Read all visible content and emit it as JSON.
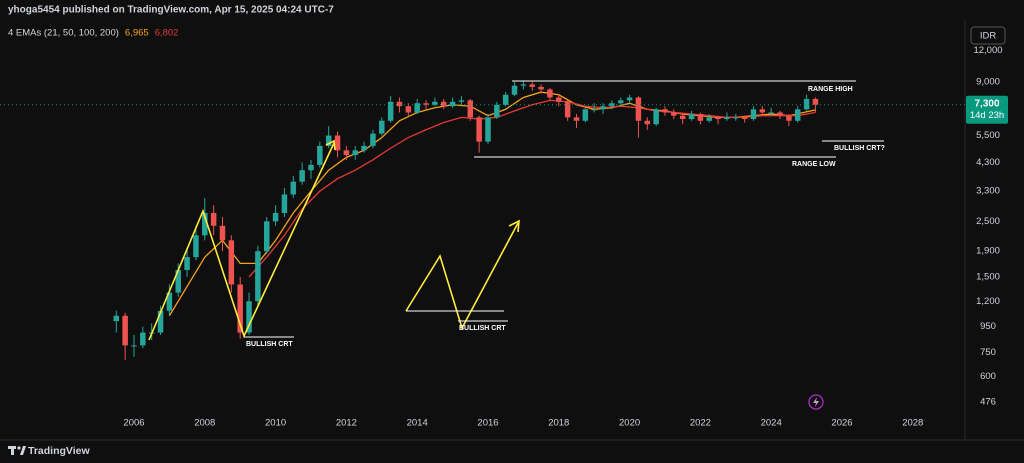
{
  "chart_data": {
    "type": "candlestick",
    "title": "yhoga5454 published on TradingView.com, Apr 15, 2025 04:24 UTC-7",
    "currency": "IDR",
    "brand": "TradingView",
    "indicator": "4 EMAs (21, 50, 100, 200)",
    "log_scale": true,
    "grid": false,
    "up_color": "#26a69a",
    "down_color": "#ef5350",
    "xlim": [
      2002.215,
      2029.475
    ],
    "xticks": [
      2006,
      2008,
      2010,
      2012,
      2014,
      2016,
      2018,
      2020,
      2022,
      2024,
      2026,
      2028
    ],
    "ylim": [
      422,
      15900
    ],
    "yticks": [
      476,
      600,
      750,
      950,
      {
        "value": 1200,
        "label": "1,200"
      },
      {
        "value": 1500,
        "label": "1,500"
      },
      {
        "value": 1900,
        "label": "1,900"
      },
      {
        "value": 2500,
        "label": "2,500"
      },
      {
        "value": 3300,
        "label": "3,300"
      },
      {
        "value": 4300,
        "label": "4,300"
      },
      {
        "value": 5500,
        "label": "5,500"
      },
      {
        "value": 9000,
        "label": "9,000"
      },
      {
        "value": 12000,
        "label": "12,000"
      }
    ],
    "last_price": {
      "value": 7300,
      "label": "7,300",
      "countdown": "14d 23h",
      "color": "#089981"
    },
    "x": [
      2005.5,
      2005.75,
      2006,
      2006.25,
      2006.5,
      2006.75,
      2007,
      2007.25,
      2007.5,
      2007.75,
      2008,
      2008.25,
      2008.5,
      2008.75,
      2009,
      2009.25,
      2009.5,
      2009.75,
      2010,
      2010.25,
      2010.5,
      2010.75,
      2011,
      2011.25,
      2011.5,
      2011.75,
      2012,
      2012.25,
      2012.5,
      2012.75,
      2013,
      2013.25,
      2013.5,
      2013.75,
      2014,
      2014.25,
      2014.5,
      2014.75,
      2015,
      2015.25,
      2015.5,
      2015.75,
      2016,
      2016.25,
      2016.5,
      2016.75,
      2017,
      2017.25,
      2017.5,
      2017.75,
      2018,
      2018.25,
      2018.5,
      2018.75,
      2019,
      2019.25,
      2019.5,
      2019.75,
      2020,
      2020.25,
      2020.5,
      2020.75,
      2021,
      2021.25,
      2021.5,
      2021.75,
      2022,
      2022.25,
      2022.5,
      2022.75,
      2023,
      2023.25,
      2023.5,
      2023.75,
      2024,
      2024.25,
      2024.5,
      2024.75,
      2025,
      2025.25
    ],
    "ohlc": [
      [
        1000,
        1100,
        900,
        1050
      ],
      [
        1050,
        1080,
        700,
        800
      ],
      [
        800,
        880,
        720,
        800
      ],
      [
        800,
        950,
        780,
        900
      ],
      [
        900,
        980,
        840,
        900
      ],
      [
        900,
        1150,
        880,
        1100
      ],
      [
        1100,
        1400,
        1050,
        1300
      ],
      [
        1300,
        1700,
        1250,
        1600
      ],
      [
        1600,
        1950,
        1500,
        1800
      ],
      [
        1800,
        2400,
        1750,
        2200
      ],
      [
        2200,
        3100,
        2100,
        2700
      ],
      [
        2700,
        2900,
        2200,
        2400
      ],
      [
        2400,
        2600,
        1900,
        2100
      ],
      [
        2100,
        2200,
        1300,
        1400
      ],
      [
        1400,
        1500,
        850,
        900
      ],
      [
        900,
        1300,
        880,
        1200
      ],
      [
        1200,
        2000,
        1150,
        1900
      ],
      [
        1900,
        2600,
        1850,
        2500
      ],
      [
        2500,
        2900,
        2400,
        2700
      ],
      [
        2700,
        3400,
        2600,
        3200
      ],
      [
        3200,
        3800,
        3100,
        3600
      ],
      [
        3600,
        4300,
        3500,
        4000
      ],
      [
        4000,
        4400,
        3700,
        4200
      ],
      [
        4200,
        5200,
        4100,
        5000
      ],
      [
        5000,
        6000,
        4900,
        5500
      ],
      [
        5500,
        5700,
        4500,
        4800
      ],
      [
        4800,
        5000,
        4400,
        4600
      ],
      [
        4600,
        5000,
        4400,
        4800
      ],
      [
        4800,
        5200,
        4700,
        5000
      ],
      [
        5000,
        5800,
        4900,
        5600
      ],
      [
        5600,
        6500,
        5500,
        6300
      ],
      [
        6300,
        7900,
        6200,
        7500
      ],
      [
        7500,
        7800,
        6800,
        7200
      ],
      [
        7200,
        7400,
        6500,
        6800
      ],
      [
        6800,
        7700,
        6700,
        7400
      ],
      [
        7400,
        7600,
        7000,
        7300
      ],
      [
        7300,
        7800,
        7200,
        7500
      ],
      [
        7500,
        7700,
        7000,
        7200
      ],
      [
        7200,
        7800,
        7100,
        7500
      ],
      [
        7500,
        7900,
        7300,
        7600
      ],
      [
        7600,
        7700,
        6300,
        6500
      ],
      [
        6500,
        6600,
        4700,
        5200
      ],
      [
        5200,
        6700,
        5100,
        6500
      ],
      [
        6500,
        7500,
        6400,
        7300
      ],
      [
        7300,
        8200,
        7200,
        8000
      ],
      [
        8000,
        9000,
        7900,
        8700
      ],
      [
        8700,
        9100,
        8400,
        8800
      ],
      [
        8800,
        9000,
        8300,
        8600
      ],
      [
        8600,
        8800,
        8100,
        8400
      ],
      [
        8400,
        8500,
        7600,
        7800
      ],
      [
        7800,
        8000,
        7200,
        7500
      ],
      [
        7500,
        7600,
        6300,
        6500
      ],
      [
        6500,
        6700,
        5900,
        6300
      ],
      [
        6300,
        7100,
        6200,
        7000
      ],
      [
        7000,
        7400,
        6800,
        7000
      ],
      [
        7000,
        7400,
        6700,
        7200
      ],
      [
        7200,
        7600,
        7000,
        7400
      ],
      [
        7400,
        7800,
        7200,
        7600
      ],
      [
        7600,
        8000,
        7400,
        7800
      ],
      [
        7800,
        7900,
        5400,
        6300
      ],
      [
        6300,
        6500,
        5800,
        6100
      ],
      [
        6100,
        7100,
        6000,
        7000
      ],
      [
        7000,
        7200,
        6600,
        6800
      ],
      [
        6800,
        7000,
        6400,
        6600
      ],
      [
        6600,
        6700,
        6100,
        6400
      ],
      [
        6400,
        6900,
        6300,
        6700
      ],
      [
        6700,
        6800,
        6100,
        6300
      ],
      [
        6300,
        6700,
        6200,
        6500
      ],
      [
        6500,
        6600,
        6100,
        6400
      ],
      [
        6400,
        6800,
        6300,
        6500
      ],
      [
        6500,
        6700,
        6300,
        6500
      ],
      [
        6500,
        6600,
        6200,
        6400
      ],
      [
        6400,
        7200,
        6300,
        7000
      ],
      [
        7000,
        7200,
        6600,
        6800
      ],
      [
        6800,
        7100,
        6600,
        6800
      ],
      [
        6800,
        6900,
        6400,
        6600
      ],
      [
        6600,
        6700,
        6000,
        6300
      ],
      [
        6300,
        7200,
        6200,
        7000
      ],
      [
        7000,
        8000,
        6900,
        7700
      ],
      [
        7700,
        7800,
        6800,
        7300
      ]
    ],
    "series": [
      {
        "color": "#f7a21b",
        "legend_value": {
          "value": 6965,
          "label": "6,965"
        },
        "x": [
          2007,
          2008,
          2008.5,
          2009,
          2009.5,
          2010,
          2010.5,
          2011,
          2011.5,
          2012,
          2012.5,
          2013,
          2013.5,
          2014,
          2014.5,
          2015,
          2015.5,
          2016,
          2016.5,
          2017,
          2017.5,
          2018,
          2018.5,
          2019,
          2019.5,
          2020,
          2020.5,
          2021,
          2021.5,
          2022,
          2022.5,
          2023,
          2023.5,
          2024,
          2024.5,
          2025.25
        ],
        "values": [
          1050,
          1800,
          2100,
          1700,
          1700,
          2100,
          2700,
          3300,
          4000,
          4500,
          4800,
          5400,
          6300,
          6800,
          7100,
          7300,
          7200,
          6600,
          7000,
          7800,
          8200,
          8000,
          7300,
          7000,
          7100,
          7400,
          7000,
          6900,
          6700,
          6600,
          6500,
          6500,
          6600,
          6700,
          6600,
          6965
        ]
      },
      {
        "color": "#e53935",
        "legend_value": {
          "value": 6802,
          "label": "6,802"
        },
        "x": [
          2009.25,
          2009.75,
          2010.25,
          2010.75,
          2011.25,
          2011.75,
          2012.25,
          2012.75,
          2013.25,
          2013.75,
          2014.25,
          2014.75,
          2015.25,
          2015.75,
          2016.25,
          2016.75,
          2017.25,
          2017.75,
          2018.25,
          2018.75,
          2019.25,
          2019.75,
          2020.25,
          2020.75,
          2021.25,
          2021.75,
          2022.25,
          2022.75,
          2023.25,
          2023.75,
          2024.25,
          2024.75,
          2025.25
        ],
        "values": [
          1500,
          1800,
          2200,
          2800,
          3300,
          3700,
          4000,
          4400,
          4900,
          5400,
          5800,
          6200,
          6500,
          6400,
          6500,
          6900,
          7300,
          7600,
          7500,
          7200,
          7100,
          7200,
          7100,
          6900,
          6800,
          6700,
          6600,
          6500,
          6500,
          6600,
          6600,
          6600,
          6802
        ]
      }
    ],
    "annotations": [
      "RANGE HIGH",
      "RANGE LOW",
      "BULLISH CRT?",
      "BULLISH CRT",
      "BULLISH CRT"
    ]
  }
}
